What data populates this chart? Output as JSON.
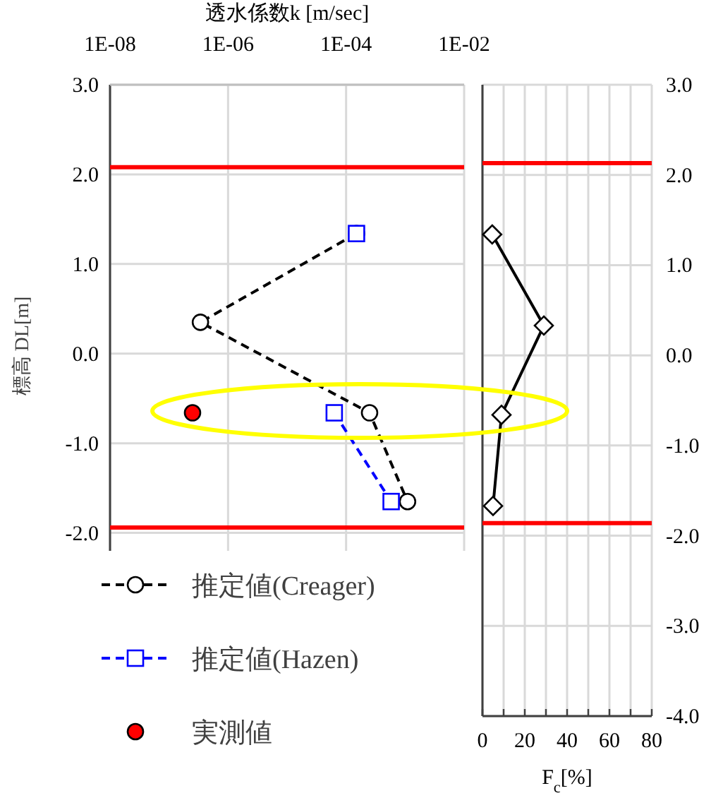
{
  "chart_data": [
    {
      "type": "line",
      "xlabel": "透水係数k [m/sec]",
      "ylabel": "標高 DL[m]",
      "log": "x",
      "xlim": [
        1e-08,
        0.01
      ],
      "xticks": [
        {
          "value": 1e-08,
          "label": "1E-08"
        },
        {
          "value": 1e-06,
          "label": "1E-06"
        },
        {
          "value": 0.0001,
          "label": "1E-04"
        },
        {
          "value": 0.01,
          "label": "1E-02"
        }
      ],
      "ylim": [
        -2.2,
        3
      ],
      "yticks": [
        {
          "value": 3,
          "label": "3.0"
        },
        {
          "value": 2,
          "label": "2.0"
        },
        {
          "value": 1,
          "label": "1.0"
        },
        {
          "value": 0,
          "label": "0.0"
        },
        {
          "value": -1,
          "label": "-1.0"
        },
        {
          "value": -2,
          "label": "-2.0"
        }
      ],
      "grid": true,
      "legend": "bottom",
      "ref_lines": [
        {
          "axis": "y",
          "value": 2.08,
          "color": "#ff0000"
        },
        {
          "axis": "y",
          "value": -1.94,
          "color": "#ff0000"
        }
      ],
      "series": [
        {
          "name": "推定値(Creager)",
          "color": "#000000",
          "marker": "circle",
          "line_style": "dashed",
          "x": [
            0.00015,
            3.4e-07,
            0.00025,
            0.0011
          ],
          "values": [
            1.34,
            0.35,
            -0.66,
            -1.65
          ]
        },
        {
          "name": "推定値(Hazen)",
          "color": "#0000ff",
          "marker": "square",
          "line_style": "dashed",
          "x": [
            0.00015,
            null,
            6.3e-05,
            0.00058
          ],
          "values": [
            1.34,
            null,
            -0.66,
            -1.65
          ]
        },
        {
          "name": "実測値",
          "type": "scatter",
          "color": "#ff0000",
          "marker": "circle",
          "x": [
            2.5e-07
          ],
          "values": [
            -0.66
          ]
        }
      ]
    },
    {
      "type": "line",
      "xlabel": "F$_{c}$[%]",
      "xlim": [
        0,
        80
      ],
      "xticks": [
        0,
        {
          "value": 10,
          "label": null
        },
        20,
        {
          "value": 30,
          "label": null
        },
        40,
        {
          "value": 50,
          "label": null
        },
        60,
        {
          "value": 70,
          "label": null
        },
        80
      ],
      "ylim": [
        -4,
        3
      ],
      "yticks": [
        {
          "value": 3,
          "label": "3.0"
        },
        {
          "value": 2,
          "label": "2.0"
        },
        {
          "value": 1,
          "label": "1.0"
        },
        {
          "value": 0,
          "label": "0.0"
        },
        {
          "value": -1,
          "label": "-1.0"
        },
        {
          "value": -2,
          "label": "-2.0"
        },
        {
          "value": -3,
          "label": "-3.0"
        },
        {
          "value": -4,
          "label": "-4.0"
        }
      ],
      "grid": true,
      "ref_lines": [
        {
          "axis": "y",
          "value": 2.13,
          "color": "#ff0000"
        },
        {
          "axis": "y",
          "value": -1.86,
          "color": "#ff0000"
        }
      ],
      "series": [
        {
          "color": "#000000",
          "marker": "diamond",
          "line_style": "solid",
          "x": [
            4.6,
            29,
            9,
            5
          ],
          "values": [
            1.34,
            0.33,
            -0.66,
            -1.67
          ]
        }
      ]
    }
  ]
}
